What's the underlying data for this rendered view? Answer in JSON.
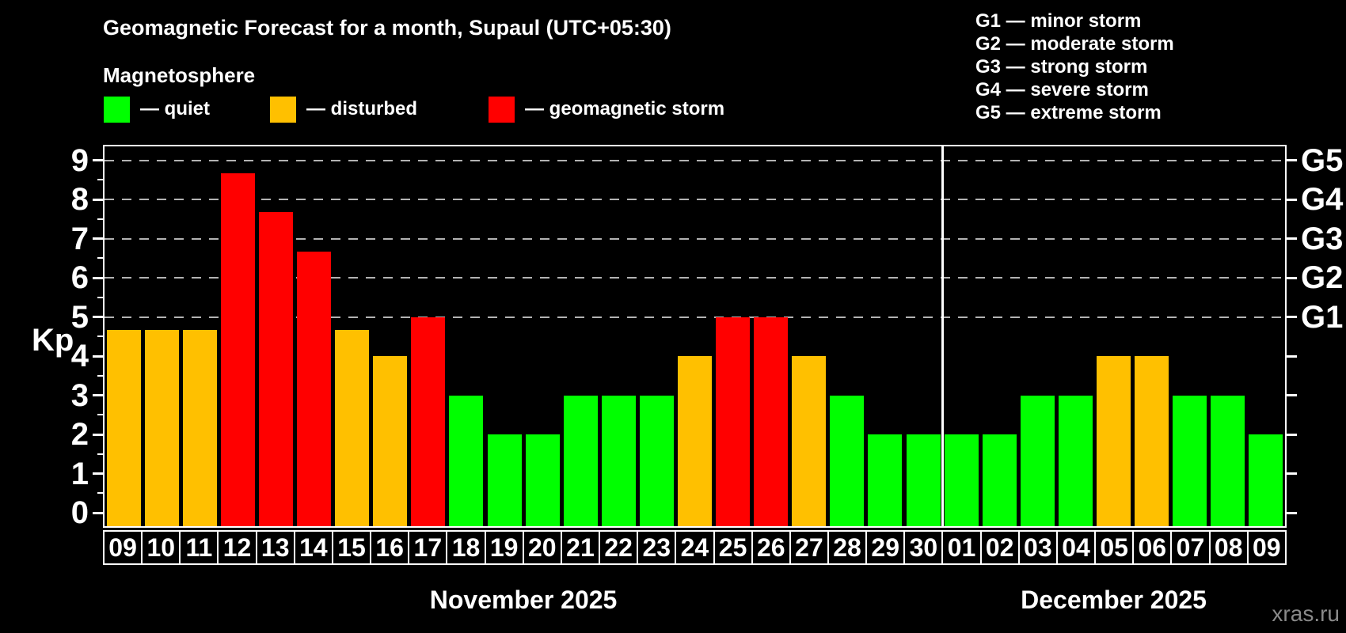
{
  "title": "Geomagnetic Forecast for a month, Supaul (UTC+05:30)",
  "subtitle": "Magnetosphere",
  "legend": [
    {
      "key": "quiet",
      "label": "— quiet",
      "color": "#00ff00"
    },
    {
      "key": "disturbed",
      "label": "— disturbed",
      "color": "#ffc000"
    },
    {
      "key": "storm",
      "label": "— geomagnetic storm",
      "color": "#ff0000"
    }
  ],
  "g_scale": [
    "G1 — minor storm",
    "G2 — moderate storm",
    "G3 — strong storm",
    "G4 — severe storm",
    "G5 — extreme storm"
  ],
  "watermark": "xras.ru",
  "chart_data": {
    "type": "bar",
    "title": "Geomagnetic Forecast for a month, Supaul (UTC+05:30)",
    "ylabel": "Kp",
    "ylim": [
      0,
      9.4
    ],
    "yticks": [
      0,
      1,
      2,
      3,
      4,
      5,
      6,
      7,
      8,
      9
    ],
    "gridlines_at_kp": [
      5,
      6,
      7,
      8,
      9
    ],
    "grid": "dashed horizontal at storm levels",
    "legend_position": "top",
    "right_axis": [
      {
        "kp": 5,
        "label": "G1"
      },
      {
        "kp": 6,
        "label": "G2"
      },
      {
        "kp": 7,
        "label": "G3"
      },
      {
        "kp": 8,
        "label": "G4"
      },
      {
        "kp": 9,
        "label": "G5"
      }
    ],
    "status_colors": {
      "quiet": "#00ff00",
      "disturbed": "#ffc000",
      "storm": "#ff0000"
    },
    "months": [
      {
        "label": "November 2025",
        "bar_count": 22
      },
      {
        "label": "December 2025",
        "bar_count": 9
      }
    ],
    "bars": [
      {
        "date": "09",
        "kp": 4.67,
        "status": "disturbed"
      },
      {
        "date": "10",
        "kp": 4.67,
        "status": "disturbed"
      },
      {
        "date": "11",
        "kp": 4.67,
        "status": "disturbed"
      },
      {
        "date": "12",
        "kp": 8.67,
        "status": "storm"
      },
      {
        "date": "13",
        "kp": 7.67,
        "status": "storm"
      },
      {
        "date": "14",
        "kp": 6.67,
        "status": "storm"
      },
      {
        "date": "15",
        "kp": 4.67,
        "status": "disturbed"
      },
      {
        "date": "16",
        "kp": 4,
        "status": "disturbed"
      },
      {
        "date": "17",
        "kp": 5,
        "status": "storm"
      },
      {
        "date": "18",
        "kp": 3,
        "status": "quiet"
      },
      {
        "date": "19",
        "kp": 2,
        "status": "quiet"
      },
      {
        "date": "20",
        "kp": 2,
        "status": "quiet"
      },
      {
        "date": "21",
        "kp": 3,
        "status": "quiet"
      },
      {
        "date": "22",
        "kp": 3,
        "status": "quiet"
      },
      {
        "date": "23",
        "kp": 3,
        "status": "quiet"
      },
      {
        "date": "24",
        "kp": 4,
        "status": "disturbed"
      },
      {
        "date": "25",
        "kp": 5,
        "status": "storm"
      },
      {
        "date": "26",
        "kp": 5,
        "status": "storm"
      },
      {
        "date": "27",
        "kp": 4,
        "status": "disturbed"
      },
      {
        "date": "28",
        "kp": 3,
        "status": "quiet"
      },
      {
        "date": "29",
        "kp": 2,
        "status": "quiet"
      },
      {
        "date": "30",
        "kp": 2,
        "status": "quiet"
      },
      {
        "date": "01",
        "kp": 2,
        "status": "quiet"
      },
      {
        "date": "02",
        "kp": 2,
        "status": "quiet"
      },
      {
        "date": "03",
        "kp": 3,
        "status": "quiet"
      },
      {
        "date": "04",
        "kp": 3,
        "status": "quiet"
      },
      {
        "date": "05",
        "kp": 4,
        "status": "disturbed"
      },
      {
        "date": "06",
        "kp": 4,
        "status": "disturbed"
      },
      {
        "date": "07",
        "kp": 3,
        "status": "quiet"
      },
      {
        "date": "08",
        "kp": 3,
        "status": "quiet"
      },
      {
        "date": "09",
        "kp": 2,
        "status": "quiet"
      }
    ]
  }
}
